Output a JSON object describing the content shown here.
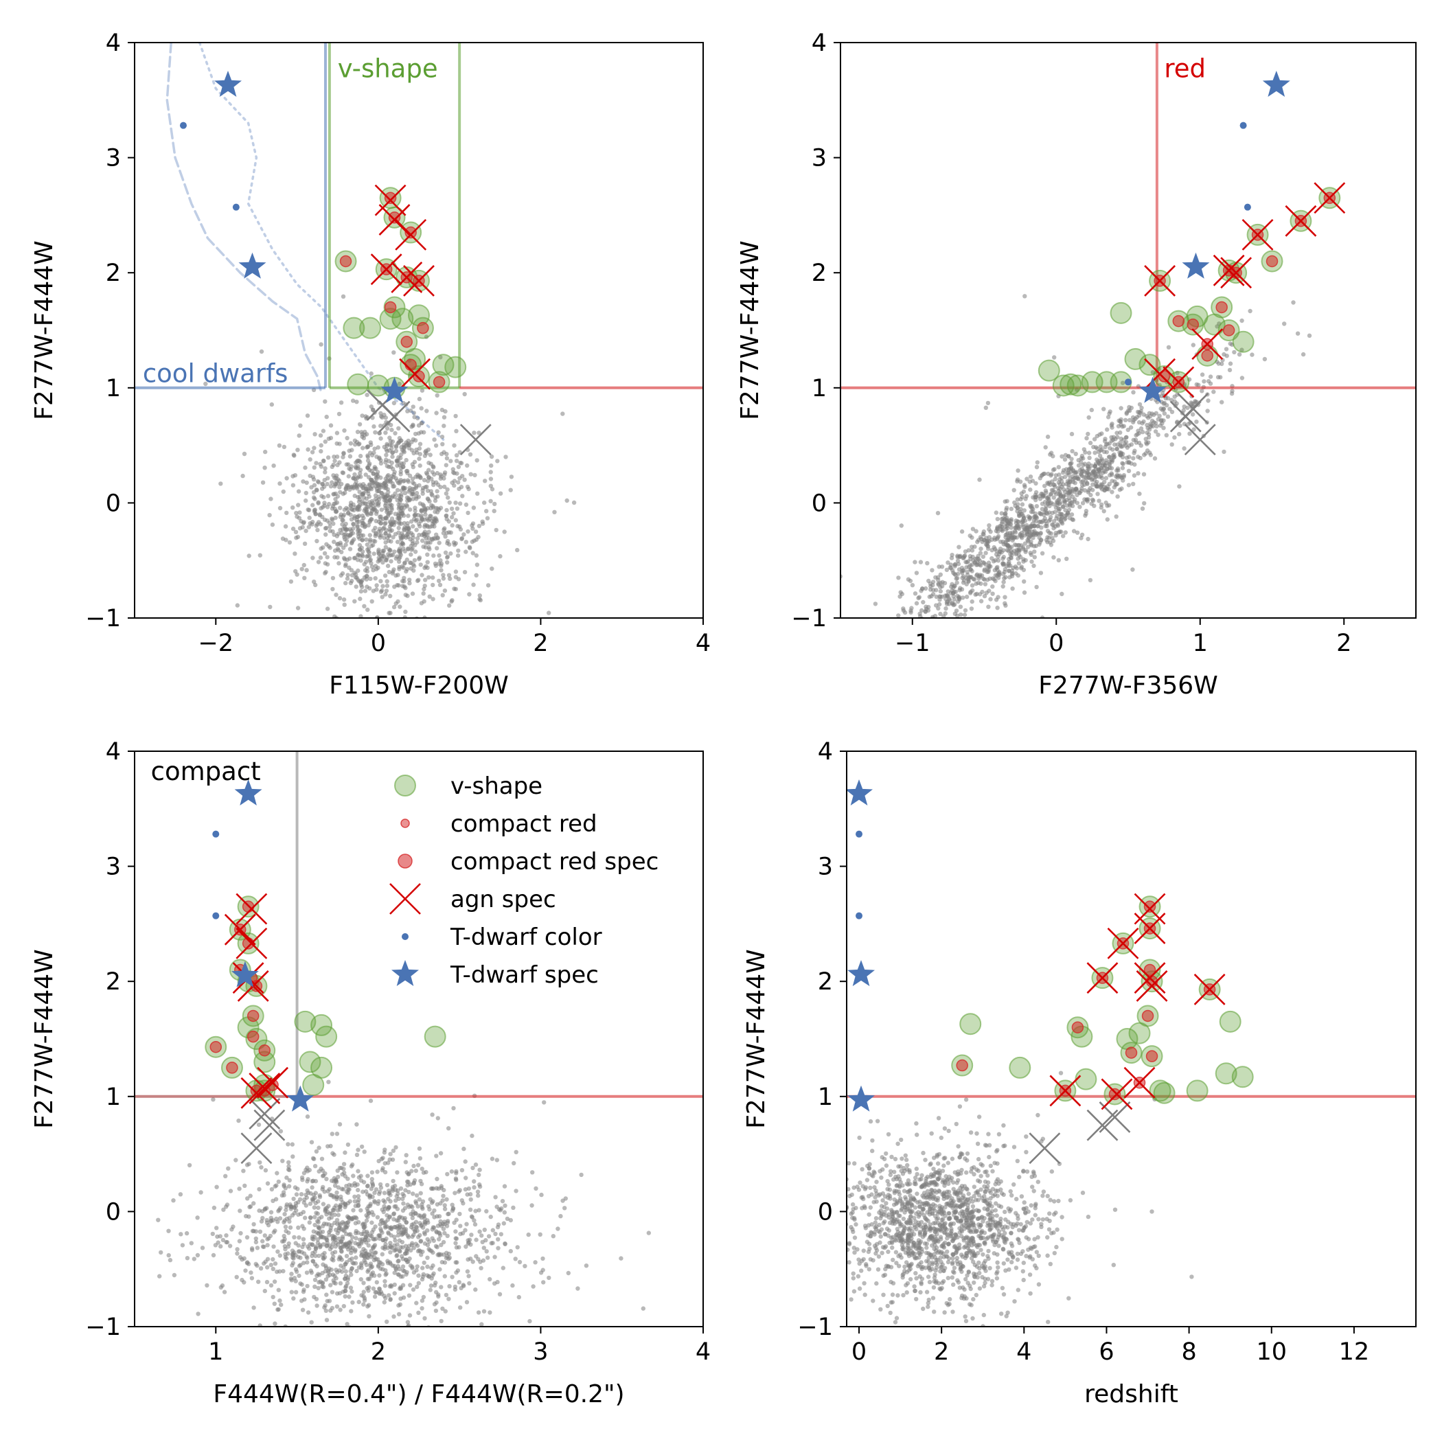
{
  "colors": {
    "background": "#7f7f7f",
    "vshape": "#5b9e32",
    "red": "#d62728",
    "agn": "#d40000",
    "tdwarf": "#4a74b4",
    "compact_line": "#808080"
  },
  "chart_data": [
    {
      "id": "p1",
      "type": "scatter",
      "xlabel": "F115W-F200W",
      "ylabel": "F277W-F444W",
      "xlim": [
        -3,
        4
      ],
      "ylim": [
        -1,
        4
      ],
      "xticks": [
        -2,
        0,
        2,
        4
      ],
      "yticks": [
        -1,
        0,
        1,
        2,
        3,
        4
      ],
      "annotations": [
        {
          "text": "v-shape",
          "x": -0.5,
          "y": 3.7,
          "color": "#5b9e32"
        },
        {
          "text": "cool dwarfs",
          "x": -2.9,
          "y": 1.05,
          "color": "#4a74b4"
        }
      ],
      "background_cloud": {
        "center": [
          0.1,
          -0.05
        ],
        "spread": [
          0.55,
          0.42
        ],
        "n": 1500
      },
      "vshape": [
        [
          0.15,
          2.65
        ],
        [
          0.2,
          2.48
        ],
        [
          0.4,
          2.35
        ],
        [
          -0.4,
          2.1
        ],
        [
          0.1,
          2.03
        ],
        [
          0.35,
          1.96
        ],
        [
          0.5,
          1.93
        ],
        [
          -0.3,
          1.52
        ],
        [
          -0.1,
          1.52
        ],
        [
          0.15,
          1.6
        ],
        [
          0.2,
          1.7
        ],
        [
          0.3,
          1.6
        ],
        [
          0.5,
          1.63
        ],
        [
          0.55,
          1.52
        ],
        [
          0.35,
          1.4
        ],
        [
          0.4,
          1.2
        ],
        [
          0.45,
          1.25
        ],
        [
          0.8,
          1.2
        ],
        [
          0.95,
          1.18
        ],
        [
          -0.25,
          1.03
        ],
        [
          0.0,
          1.02
        ],
        [
          0.2,
          1.0
        ],
        [
          0.5,
          1.1
        ],
        [
          0.75,
          1.05
        ]
      ],
      "compact_red": [
        [
          0.15,
          2.65
        ],
        [
          0.2,
          2.48
        ],
        [
          0.4,
          2.35
        ],
        [
          -0.4,
          2.1
        ],
        [
          0.1,
          2.03
        ],
        [
          0.35,
          1.96
        ],
        [
          0.5,
          1.93
        ],
        [
          0.15,
          1.7
        ],
        [
          0.55,
          1.52
        ],
        [
          0.35,
          1.4
        ],
        [
          0.4,
          1.2
        ],
        [
          0.5,
          1.1
        ],
        [
          0.75,
          1.05
        ]
      ],
      "agn": [
        [
          0.15,
          2.63
        ],
        [
          0.2,
          2.46
        ],
        [
          0.4,
          2.33
        ],
        [
          0.1,
          2.03
        ],
        [
          0.35,
          1.96
        ],
        [
          0.5,
          1.93
        ],
        [
          0.45,
          1.12
        ]
      ],
      "grey_x": [
        [
          0.05,
          0.85
        ],
        [
          0.2,
          0.75
        ],
        [
          1.2,
          0.55
        ]
      ],
      "tdwarf_color": [
        [
          -2.4,
          3.28
        ],
        [
          -1.75,
          2.57
        ]
      ],
      "tdwarf_spec": [
        [
          -1.85,
          3.63
        ],
        [
          -1.55,
          2.05
        ],
        [
          0.2,
          0.97
        ]
      ],
      "vlines": [
        {
          "x": -0.65,
          "y0": 1,
          "y1": 4,
          "color": "#4a74b4"
        },
        {
          "x": -0.6,
          "y0": 1,
          "y1": 4,
          "color": "#5b9e32"
        },
        {
          "x": 1.0,
          "y0": 1,
          "y1": 4,
          "color": "#5b9e32"
        }
      ],
      "hlines": [
        {
          "y": 1,
          "x0": -3,
          "x1": -0.65,
          "color": "#4a74b4"
        },
        {
          "y": 1,
          "x0": -0.6,
          "x1": 1.0,
          "color": "#5b9e32"
        },
        {
          "y": 1,
          "x0": 1.0,
          "x1": 4,
          "color": "#d62728"
        }
      ],
      "curves": [
        {
          "style": "dashed",
          "points": [
            [
              -2.55,
              4.0
            ],
            [
              -2.6,
              3.5
            ],
            [
              -2.5,
              3.0
            ],
            [
              -2.3,
              2.6
            ],
            [
              -2.1,
              2.3
            ],
            [
              -1.7,
              2.0
            ],
            [
              -1.3,
              1.75
            ],
            [
              -1.0,
              1.6
            ],
            [
              -0.9,
              1.3
            ],
            [
              -0.75,
              1.1
            ],
            [
              -0.7,
              0.95
            ]
          ]
        },
        {
          "style": "dotted",
          "points": [
            [
              -2.2,
              4.0
            ],
            [
              -2.0,
              3.6
            ],
            [
              -1.6,
              3.3
            ],
            [
              -1.5,
              3.0
            ],
            [
              -1.6,
              2.6
            ],
            [
              -1.3,
              2.2
            ],
            [
              -1.0,
              1.9
            ],
            [
              -0.7,
              1.7
            ],
            [
              -0.5,
              1.5
            ],
            [
              -0.3,
              1.3
            ],
            [
              0.0,
              1.0
            ],
            [
              0.4,
              0.8
            ],
            [
              0.8,
              0.55
            ]
          ]
        }
      ]
    },
    {
      "id": "p2",
      "type": "scatter",
      "xlabel": "F277W-F356W",
      "ylabel": "F277W-F444W",
      "xlim": [
        -1.5,
        2.5
      ],
      "ylim": [
        -1,
        4
      ],
      "xticks": [
        -1,
        0,
        1,
        2
      ],
      "yticks": [
        -1,
        0,
        1,
        2,
        3,
        4
      ],
      "annotations": [
        {
          "text": "red",
          "x": 0.75,
          "y": 3.7,
          "color": "#d40000"
        }
      ],
      "background_cloud": {
        "center": [
          -0.1,
          -0.1
        ],
        "spread": [
          0.35,
          0.38
        ],
        "n": 1500,
        "correlated": true
      },
      "vshape": [
        [
          -0.05,
          1.15
        ],
        [
          0.05,
          1.02
        ],
        [
          0.1,
          1.03
        ],
        [
          0.15,
          1.02
        ],
        [
          0.25,
          1.05
        ],
        [
          0.35,
          1.05
        ],
        [
          0.45,
          1.05
        ],
        [
          0.55,
          1.25
        ],
        [
          0.45,
          1.65
        ],
        [
          0.85,
          1.58
        ],
        [
          0.95,
          1.55
        ],
        [
          0.98,
          1.62
        ],
        [
          1.1,
          1.55
        ],
        [
          1.15,
          1.7
        ],
        [
          1.2,
          1.5
        ],
        [
          1.3,
          1.4
        ],
        [
          0.65,
          1.2
        ],
        [
          0.75,
          1.1
        ],
        [
          0.85,
          1.05
        ],
        [
          1.05,
          1.28
        ],
        [
          1.7,
          2.45
        ],
        [
          1.9,
          2.65
        ],
        [
          1.5,
          2.1
        ],
        [
          1.4,
          2.33
        ],
        [
          1.2,
          2.02
        ],
        [
          1.25,
          2.0
        ],
        [
          0.72,
          1.93
        ]
      ],
      "compact_red": [
        [
          1.9,
          2.65
        ],
        [
          1.7,
          2.45
        ],
        [
          1.4,
          2.33
        ],
        [
          1.2,
          2.02
        ],
        [
          1.25,
          2.0
        ],
        [
          1.5,
          2.1
        ],
        [
          0.72,
          1.93
        ],
        [
          1.15,
          1.7
        ],
        [
          1.2,
          1.5
        ],
        [
          0.95,
          1.55
        ],
        [
          0.85,
          1.58
        ],
        [
          1.05,
          1.38
        ],
        [
          1.05,
          1.28
        ],
        [
          0.75,
          1.1
        ],
        [
          0.85,
          1.05
        ]
      ],
      "agn": [
        [
          1.9,
          2.65
        ],
        [
          1.7,
          2.45
        ],
        [
          1.4,
          2.33
        ],
        [
          1.2,
          2.02
        ],
        [
          1.25,
          2.0
        ],
        [
          0.72,
          1.93
        ],
        [
          1.05,
          1.38
        ],
        [
          0.72,
          1.12
        ],
        [
          0.85,
          1.05
        ]
      ],
      "grey_x": [
        [
          0.9,
          0.75
        ],
        [
          0.95,
          0.82
        ],
        [
          1.0,
          0.55
        ]
      ],
      "tdwarf_color": [
        [
          1.3,
          3.28
        ],
        [
          1.33,
          2.57
        ],
        [
          0.5,
          1.05
        ]
      ],
      "tdwarf_spec": [
        [
          1.53,
          3.63
        ],
        [
          0.97,
          2.05
        ],
        [
          0.67,
          0.97
        ]
      ],
      "vlines": [
        {
          "x": 0.7,
          "y0": 1,
          "y1": 4,
          "color": "#d62728"
        }
      ],
      "hlines": [
        {
          "y": 1,
          "x0": -1.5,
          "x1": 2.5,
          "color": "#d62728"
        }
      ],
      "curves": []
    },
    {
      "id": "p3",
      "type": "scatter",
      "xlabel": "F444W(R=0.4\") / F444W(R=0.2\")",
      "ylabel": "F277W-F444W",
      "xlim": [
        0.5,
        4
      ],
      "ylim": [
        -1,
        4
      ],
      "xticks": [
        1,
        2,
        3,
        4
      ],
      "yticks": [
        -1,
        0,
        1,
        2,
        3,
        4
      ],
      "annotations": [
        {
          "text": "compact",
          "x": 0.6,
          "y": 3.75,
          "color": "#000000"
        }
      ],
      "legend": {
        "position": "upper-right",
        "entries": [
          {
            "label": "v-shape",
            "marker": "vshape"
          },
          {
            "label": "compact red",
            "marker": "compact_red_small"
          },
          {
            "label": "compact red spec",
            "marker": "compact_red_spec"
          },
          {
            "label": "agn spec",
            "marker": "agn"
          },
          {
            "label": "T-dwarf color",
            "marker": "tdwarf_color"
          },
          {
            "label": "T-dwarf spec",
            "marker": "tdwarf_spec"
          }
        ]
      },
      "background_cloud": {
        "center": [
          1.9,
          -0.2
        ],
        "spread": [
          0.45,
          0.35
        ],
        "n": 1500
      },
      "vshape": [
        [
          1.0,
          1.43
        ],
        [
          1.1,
          1.25
        ],
        [
          1.15,
          2.1
        ],
        [
          1.2,
          1.6
        ],
        [
          1.23,
          1.7
        ],
        [
          1.25,
          1.5
        ],
        [
          1.25,
          1.05
        ],
        [
          1.3,
          1.4
        ],
        [
          1.3,
          1.05
        ],
        [
          1.3,
          1.3
        ],
        [
          1.55,
          1.65
        ],
        [
          1.58,
          1.3
        ],
        [
          1.65,
          1.62
        ],
        [
          1.68,
          1.52
        ],
        [
          1.65,
          1.25
        ],
        [
          1.6,
          1.1
        ],
        [
          2.35,
          1.52
        ],
        [
          1.2,
          2.65
        ],
        [
          1.15,
          2.45
        ],
        [
          1.2,
          2.33
        ],
        [
          1.2,
          2.0
        ],
        [
          1.25,
          1.96
        ],
        [
          1.3,
          1.1
        ]
      ],
      "compact_red": [
        [
          1.0,
          1.43
        ],
        [
          1.1,
          1.25
        ],
        [
          1.2,
          2.65
        ],
        [
          1.15,
          2.45
        ],
        [
          1.2,
          2.33
        ],
        [
          1.15,
          2.1
        ],
        [
          1.22,
          2.03
        ],
        [
          1.25,
          1.96
        ],
        [
          1.23,
          1.7
        ],
        [
          1.23,
          1.52
        ],
        [
          1.3,
          1.4
        ],
        [
          1.25,
          1.05
        ],
        [
          1.35,
          1.1
        ],
        [
          1.3,
          1.05
        ]
      ],
      "agn": [
        [
          1.22,
          2.63
        ],
        [
          1.15,
          2.45
        ],
        [
          1.22,
          2.33
        ],
        [
          1.2,
          2.03
        ],
        [
          1.23,
          1.96
        ],
        [
          1.35,
          1.12
        ],
        [
          1.3,
          1.07
        ],
        [
          1.25,
          1.03
        ]
      ],
      "grey_x": [
        [
          1.3,
          0.85
        ],
        [
          1.33,
          0.75
        ],
        [
          1.25,
          0.55
        ]
      ],
      "tdwarf_color": [
        [
          1.0,
          3.28
        ],
        [
          1.0,
          2.57
        ]
      ],
      "tdwarf_spec": [
        [
          1.2,
          3.63
        ],
        [
          1.18,
          2.05
        ],
        [
          1.52,
          0.97
        ]
      ],
      "vlines": [
        {
          "x": 1.5,
          "y0": 1,
          "y1": 4,
          "color": "#808080"
        }
      ],
      "hlines": [
        {
          "y": 1,
          "x0": 0.5,
          "x1": 1.5,
          "color": "#a03030"
        },
        {
          "y": 1,
          "x0": 1.5,
          "x1": 4,
          "color": "#d62728"
        }
      ],
      "curves": []
    },
    {
      "id": "p4",
      "type": "scatter",
      "xlabel": "redshift",
      "ylabel": "F277W-F444W",
      "xlim": [
        -0.3,
        13.5
      ],
      "ylim": [
        -1,
        4
      ],
      "xticks": [
        0,
        2,
        4,
        6,
        8,
        10,
        12
      ],
      "yticks": [
        -1,
        0,
        1,
        2,
        3,
        4
      ],
      "annotations": [],
      "background_cloud": {
        "center": [
          2.0,
          -0.1
        ],
        "spread": [
          1.2,
          0.32
        ],
        "n": 1500
      },
      "vshape": [
        [
          2.5,
          1.27
        ],
        [
          2.7,
          1.63
        ],
        [
          3.9,
          1.25
        ],
        [
          5.3,
          1.6
        ],
        [
          5.4,
          1.52
        ],
        [
          5.5,
          1.15
        ],
        [
          6.2,
          1.02
        ],
        [
          6.5,
          1.5
        ],
        [
          6.6,
          1.38
        ],
        [
          6.8,
          1.55
        ],
        [
          7.0,
          1.7
        ],
        [
          7.1,
          1.35
        ],
        [
          7.3,
          1.05
        ],
        [
          7.4,
          1.03
        ],
        [
          8.2,
          1.05
        ],
        [
          8.9,
          1.2
        ],
        [
          9.0,
          1.65
        ],
        [
          9.3,
          1.17
        ],
        [
          5.9,
          2.03
        ],
        [
          6.4,
          2.33
        ],
        [
          7.05,
          2.65
        ],
        [
          7.05,
          2.46
        ],
        [
          7.05,
          2.1
        ],
        [
          7.1,
          2.0
        ],
        [
          8.5,
          1.93
        ],
        [
          5.0,
          1.05
        ]
      ],
      "compact_red": [
        [
          2.5,
          1.27
        ],
        [
          5.3,
          1.6
        ],
        [
          6.6,
          1.38
        ],
        [
          7.0,
          1.7
        ],
        [
          7.1,
          1.35
        ],
        [
          6.2,
          1.02
        ],
        [
          5.9,
          2.03
        ],
        [
          6.4,
          2.33
        ],
        [
          7.05,
          2.65
        ],
        [
          7.05,
          2.46
        ],
        [
          7.05,
          2.1
        ],
        [
          7.1,
          2.0
        ],
        [
          8.5,
          1.93
        ],
        [
          5.0,
          1.05
        ],
        [
          6.8,
          1.12
        ]
      ],
      "agn": [
        [
          5.9,
          2.03
        ],
        [
          6.4,
          2.33
        ],
        [
          7.05,
          2.63
        ],
        [
          7.05,
          2.46
        ],
        [
          7.05,
          2.03
        ],
        [
          7.1,
          1.96
        ],
        [
          8.5,
          1.93
        ],
        [
          5.0,
          1.05
        ],
        [
          6.8,
          1.12
        ],
        [
          6.25,
          1.02
        ]
      ],
      "grey_x": [
        [
          4.5,
          0.55
        ],
        [
          5.9,
          0.75
        ],
        [
          6.2,
          0.82
        ]
      ],
      "tdwarf_color": [
        [
          0.0,
          3.28
        ],
        [
          0.0,
          2.57
        ]
      ],
      "tdwarf_spec": [
        [
          0.0,
          3.63
        ],
        [
          0.05,
          2.06
        ],
        [
          0.05,
          0.97
        ]
      ],
      "vlines": [],
      "hlines": [
        {
          "y": 1,
          "x0": -0.3,
          "x1": 13.5,
          "color": "#d62728"
        }
      ],
      "curves": []
    }
  ]
}
